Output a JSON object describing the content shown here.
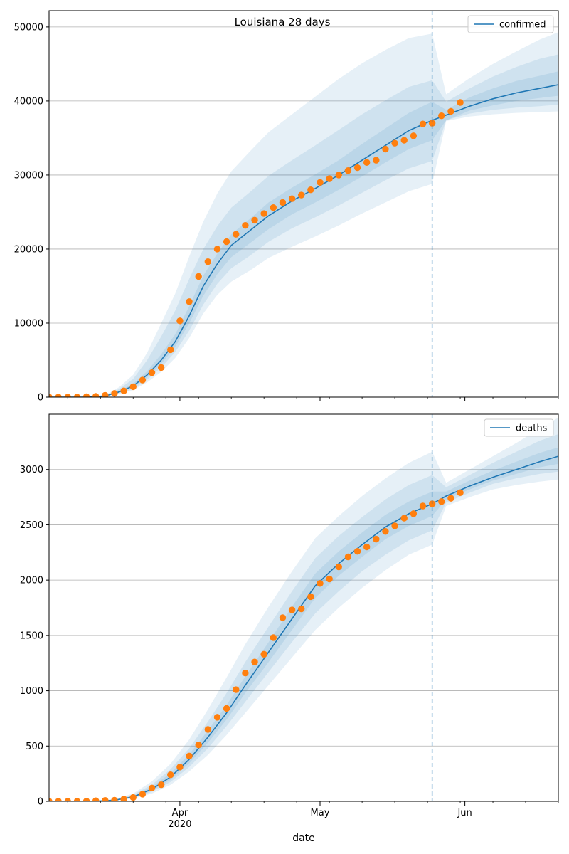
{
  "figure": {
    "title": "Louisiana 28 days",
    "xlabel": "date"
  },
  "colors": {
    "model": "#1f77b4",
    "observed": "#ff7f0e",
    "band": "#1f77b4",
    "vline": "#1f77b4",
    "grid": "#b0b0b0"
  },
  "chart_data": [
    {
      "type": "line",
      "legend": "confirmed",
      "legend_position": "top-right",
      "xlim": [
        "2020-03-04",
        "2020-06-21"
      ],
      "ylim": [
        0,
        52200
      ],
      "x_ticks": [
        {
          "date": "2020-04-01",
          "label": "Apr"
        },
        {
          "date": "2020-05-01",
          "label": "May"
        },
        {
          "date": "2020-06-01",
          "label": "Jun"
        }
      ],
      "y_ticks": [
        0,
        10000,
        20000,
        30000,
        40000,
        50000
      ],
      "grid": "y",
      "forecast_start": "2020-05-25",
      "model": {
        "dates": [
          "2020-03-04",
          "2020-03-11",
          "2020-03-16",
          "2020-03-19",
          "2020-03-22",
          "2020-03-25",
          "2020-03-28",
          "2020-03-31",
          "2020-04-03",
          "2020-04-06",
          "2020-04-09",
          "2020-04-12",
          "2020-04-16",
          "2020-04-20",
          "2020-04-25",
          "2020-04-30",
          "2020-05-05",
          "2020-05-10",
          "2020-05-15",
          "2020-05-20",
          "2020-05-25",
          "2020-05-28",
          "2020-06-02",
          "2020-06-07",
          "2020-06-12",
          "2020-06-17",
          "2020-06-21"
        ],
        "values": [
          0,
          0,
          150,
          700,
          1500,
          3000,
          5000,
          7500,
          11000,
          15000,
          18000,
          20500,
          22500,
          24500,
          26500,
          28200,
          30000,
          32000,
          34000,
          36000,
          37400,
          38100,
          39300,
          40300,
          41100,
          41700,
          42200
        ]
      },
      "bands": [
        {
          "lower": [
            0,
            0,
            75,
            430,
            950,
            2000,
            3400,
            5300,
            8000,
            11300,
            13800,
            15600,
            17100,
            18800,
            20300,
            21700,
            23200,
            24800,
            26300,
            27800,
            28800,
            37300,
            37900,
            38200,
            38400,
            38500,
            38600
          ],
          "upper": [
            0,
            0,
            260,
            1350,
            3000,
            6000,
            10000,
            14000,
            19000,
            23700,
            27500,
            30500,
            33200,
            35800,
            38200,
            40600,
            43000,
            45100,
            46900,
            48500,
            49100,
            40900,
            43100,
            45000,
            46700,
            48300,
            49300
          ]
        },
        {
          "lower": [
            0,
            0,
            100,
            520,
            1100,
            2350,
            4000,
            6100,
            9000,
            12500,
            15300,
            17400,
            19100,
            21000,
            22800,
            24300,
            25900,
            27600,
            29300,
            30900,
            31900,
            37400,
            38300,
            38800,
            39100,
            39300,
            39500
          ],
          "upper": [
            0,
            0,
            210,
            1100,
            2450,
            5000,
            8200,
            11700,
            16000,
            20000,
            23100,
            25600,
            27700,
            29900,
            32000,
            34000,
            36100,
            38200,
            40100,
            41900,
            42800,
            39900,
            41700,
            43300,
            44600,
            45700,
            46300
          ]
        },
        {
          "lower": [
            0,
            0,
            120,
            600,
            1300,
            2650,
            4500,
            6800,
            10000,
            13700,
            16600,
            18900,
            20800,
            22700,
            24700,
            26300,
            28000,
            29800,
            31700,
            33500,
            34700,
            37400,
            38700,
            39400,
            40000,
            40400,
            40700
          ],
          "upper": [
            0,
            0,
            180,
            850,
            1800,
            3500,
            5800,
            8500,
            12300,
            16400,
            19400,
            22000,
            24100,
            26300,
            28300,
            30100,
            32000,
            34200,
            36300,
            38400,
            39900,
            38800,
            40500,
            41700,
            42700,
            43400,
            44000
          ]
        }
      ],
      "observed": {
        "dates": [
          "2020-03-04",
          "2020-03-06",
          "2020-03-08",
          "2020-03-10",
          "2020-03-12",
          "2020-03-14",
          "2020-03-16",
          "2020-03-18",
          "2020-03-20",
          "2020-03-22",
          "2020-03-24",
          "2020-03-26",
          "2020-03-28",
          "2020-03-30",
          "2020-04-01",
          "2020-04-03",
          "2020-04-05",
          "2020-04-07",
          "2020-04-09",
          "2020-04-11",
          "2020-04-13",
          "2020-04-15",
          "2020-04-17",
          "2020-04-19",
          "2020-04-21",
          "2020-04-23",
          "2020-04-25",
          "2020-04-27",
          "2020-04-29",
          "2020-05-01",
          "2020-05-03",
          "2020-05-05",
          "2020-05-07",
          "2020-05-09",
          "2020-05-11",
          "2020-05-13",
          "2020-05-15",
          "2020-05-17",
          "2020-05-19",
          "2020-05-21",
          "2020-05-23",
          "2020-05-25",
          "2020-05-27",
          "2020-05-29",
          "2020-05-31"
        ],
        "values": [
          0,
          0,
          0,
          0,
          50,
          100,
          250,
          500,
          850,
          1400,
          2300,
          3300,
          4000,
          6400,
          10300,
          12900,
          16300,
          18300,
          20000,
          21000,
          22000,
          23200,
          23900,
          24800,
          25600,
          26300,
          26800,
          27300,
          28000,
          29000,
          29500,
          30000,
          30600,
          31000,
          31700,
          32000,
          33500,
          34300,
          34700,
          35300,
          36900,
          37000,
          38000,
          38600,
          39800
        ]
      }
    },
    {
      "type": "line",
      "legend": "deaths",
      "legend_position": "top-right",
      "xlim": [
        "2020-03-04",
        "2020-06-21"
      ],
      "ylim": [
        0,
        3500
      ],
      "x_ticks": [
        {
          "date": "2020-04-01",
          "label": "Apr"
        },
        {
          "date": "2020-05-01",
          "label": "May"
        },
        {
          "date": "2020-06-01",
          "label": "Jun"
        }
      ],
      "x_year_label": "2020",
      "y_ticks": [
        0,
        500,
        1000,
        1500,
        2000,
        2500,
        3000
      ],
      "grid": "y",
      "forecast_start": "2020-05-25",
      "model": {
        "dates": [
          "2020-03-04",
          "2020-03-13",
          "2020-03-18",
          "2020-03-22",
          "2020-03-26",
          "2020-03-30",
          "2020-04-03",
          "2020-04-07",
          "2020-04-11",
          "2020-04-15",
          "2020-04-20",
          "2020-04-25",
          "2020-04-30",
          "2020-05-05",
          "2020-05-10",
          "2020-05-15",
          "2020-05-20",
          "2020-05-25",
          "2020-05-28",
          "2020-06-02",
          "2020-06-07",
          "2020-06-12",
          "2020-06-17",
          "2020-06-21"
        ],
        "values": [
          0,
          0,
          10,
          40,
          110,
          220,
          380,
          580,
          800,
          1050,
          1350,
          1650,
          1950,
          2150,
          2320,
          2480,
          2600,
          2690,
          2760,
          2850,
          2930,
          3000,
          3070,
          3120
        ]
      },
      "bands": [
        {
          "lower": [
            0,
            0,
            5,
            25,
            70,
            150,
            270,
            420,
            600,
            800,
            1050,
            1300,
            1550,
            1750,
            1930,
            2090,
            2230,
            2320,
            2670,
            2750,
            2820,
            2860,
            2890,
            2910
          ],
          "upper": [
            0,
            0,
            20,
            70,
            180,
            340,
            560,
            830,
            1120,
            1420,
            1760,
            2080,
            2380,
            2580,
            2760,
            2920,
            3060,
            3160,
            2880,
            3000,
            3120,
            3240,
            3370,
            3470
          ]
        },
        {
          "lower": [
            0,
            0,
            7,
            30,
            85,
            175,
            310,
            480,
            680,
            900,
            1170,
            1440,
            1700,
            1900,
            2080,
            2230,
            2360,
            2450,
            2700,
            2790,
            2870,
            2920,
            2960,
            2980
          ],
          "upper": [
            0,
            0,
            16,
            60,
            150,
            290,
            480,
            720,
            980,
            1260,
            1580,
            1900,
            2200,
            2400,
            2570,
            2730,
            2860,
            2950,
            2840,
            2950,
            3060,
            3160,
            3260,
            3320
          ]
        },
        {
          "lower": [
            0,
            0,
            8,
            35,
            95,
            195,
            345,
            530,
            740,
            980,
            1260,
            1550,
            1840,
            2040,
            2210,
            2370,
            2490,
            2580,
            2730,
            2820,
            2900,
            2960,
            3020,
            3050
          ],
          "upper": [
            0,
            0,
            13,
            50,
            130,
            255,
            425,
            640,
            870,
            1130,
            1440,
            1760,
            2060,
            2260,
            2430,
            2590,
            2710,
            2800,
            2800,
            2900,
            2990,
            3070,
            3150,
            3200
          ]
        }
      ],
      "observed": {
        "dates": [
          "2020-03-04",
          "2020-03-06",
          "2020-03-08",
          "2020-03-10",
          "2020-03-12",
          "2020-03-14",
          "2020-03-16",
          "2020-03-18",
          "2020-03-20",
          "2020-03-22",
          "2020-03-24",
          "2020-03-26",
          "2020-03-28",
          "2020-03-30",
          "2020-04-01",
          "2020-04-03",
          "2020-04-05",
          "2020-04-07",
          "2020-04-09",
          "2020-04-11",
          "2020-04-13",
          "2020-04-15",
          "2020-04-17",
          "2020-04-19",
          "2020-04-21",
          "2020-04-23",
          "2020-04-25",
          "2020-04-27",
          "2020-04-29",
          "2020-05-01",
          "2020-05-03",
          "2020-05-05",
          "2020-05-07",
          "2020-05-09",
          "2020-05-11",
          "2020-05-13",
          "2020-05-15",
          "2020-05-17",
          "2020-05-19",
          "2020-05-21",
          "2020-05-23",
          "2020-05-25",
          "2020-05-27",
          "2020-05-29",
          "2020-05-31"
        ],
        "values": [
          0,
          0,
          0,
          0,
          2,
          5,
          8,
          10,
          20,
          35,
          65,
          120,
          150,
          240,
          310,
          410,
          510,
          650,
          760,
          840,
          1010,
          1160,
          1260,
          1330,
          1480,
          1660,
          1730,
          1740,
          1850,
          1970,
          2010,
          2120,
          2210,
          2260,
          2300,
          2370,
          2440,
          2490,
          2560,
          2600,
          2670,
          2690,
          2710,
          2740,
          2790
        ]
      }
    }
  ]
}
